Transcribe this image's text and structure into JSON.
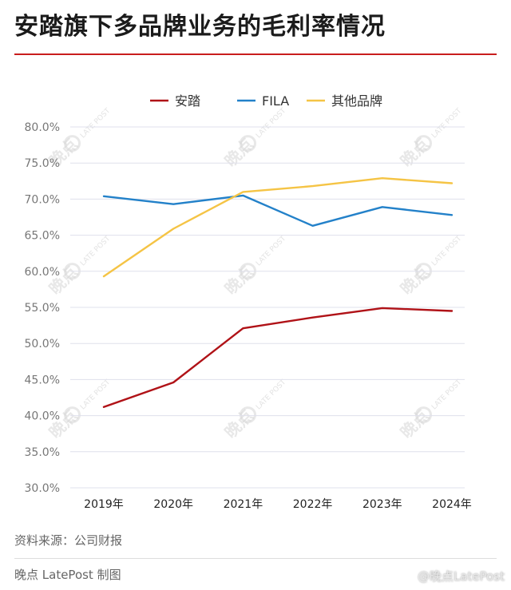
{
  "header": {
    "title": "安踏旗下多品牌业务的毛利率情况"
  },
  "footer": {
    "source": "资料来源：公司财报",
    "credit": "晚点 LatePost 制图",
    "weibo_watermark": "@晚点LatePost"
  },
  "watermark": {
    "text": "晚点",
    "sub": "LATE POST"
  },
  "colors": {
    "accent": "#c91d1d"
  },
  "chart_data": {
    "type": "line",
    "title": "安踏旗下多品牌业务的毛利率情况",
    "xlabel": "",
    "ylabel": "",
    "categories": [
      "2019年",
      "2020年",
      "2021年",
      "2022年",
      "2023年",
      "2024年"
    ],
    "series": [
      {
        "name": "安踏",
        "color": "#b01217",
        "values": [
          41.2,
          44.6,
          52.1,
          53.6,
          54.9,
          54.5
        ]
      },
      {
        "name": "FILA",
        "color": "#2381c9",
        "values": [
          70.4,
          69.3,
          70.5,
          66.3,
          68.9,
          67.8
        ]
      },
      {
        "name": "其他品牌",
        "color": "#f5c445",
        "values": [
          59.3,
          65.9,
          71.0,
          71.8,
          72.9,
          72.2
        ]
      }
    ],
    "ylim": [
      30,
      80
    ],
    "yticks": [
      "30.0%",
      "35.0%",
      "40.0%",
      "45.0%",
      "50.0%",
      "55.0%",
      "60.0%",
      "65.0%",
      "70.0%",
      "75.0%",
      "80.0%"
    ],
    "grid": true,
    "legend_position": "top-center"
  }
}
